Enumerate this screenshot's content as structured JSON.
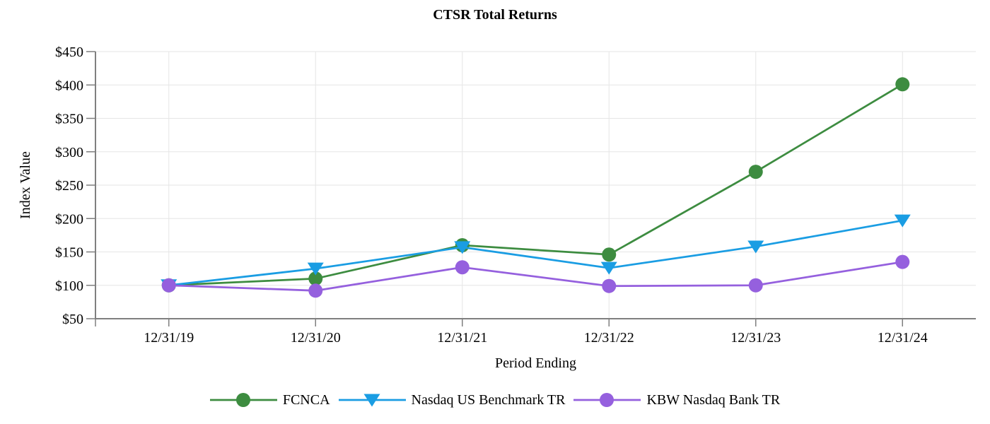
{
  "chart_data": {
    "type": "line",
    "title": "CTSR Total Returns",
    "xlabel": "Period Ending",
    "ylabel": "Index Value",
    "categories": [
      "12/31/19",
      "12/31/20",
      "12/31/21",
      "12/31/22",
      "12/31/23",
      "12/31/24"
    ],
    "y_ticks": [
      50,
      100,
      150,
      200,
      250,
      300,
      350,
      400,
      450
    ],
    "y_tick_labels": [
      "$50",
      "$100",
      "$150",
      "$200",
      "$250",
      "$300",
      "$350",
      "$400",
      "$450"
    ],
    "ylim": [
      50,
      450
    ],
    "grid": true,
    "legend_position": "bottom",
    "series": [
      {
        "name": "FCNCA",
        "color": "#3d8c40",
        "marker": "circle",
        "values": [
          100,
          110,
          160,
          146,
          270,
          401
        ]
      },
      {
        "name": "Nasdaq US Benchmark TR",
        "color": "#1a9de3",
        "marker": "triangle-down",
        "values": [
          100,
          125,
          157,
          126,
          158,
          197
        ]
      },
      {
        "name": "KBW Nasdaq Bank TR",
        "color": "#9560de",
        "marker": "circle",
        "values": [
          100,
          92,
          127,
          99,
          100,
          135
        ]
      }
    ]
  },
  "style": {
    "axis_color": "#7f7f7f",
    "grid_color": "#e6e6e6",
    "text_color": "#000000",
    "background": "#ffffff"
  }
}
